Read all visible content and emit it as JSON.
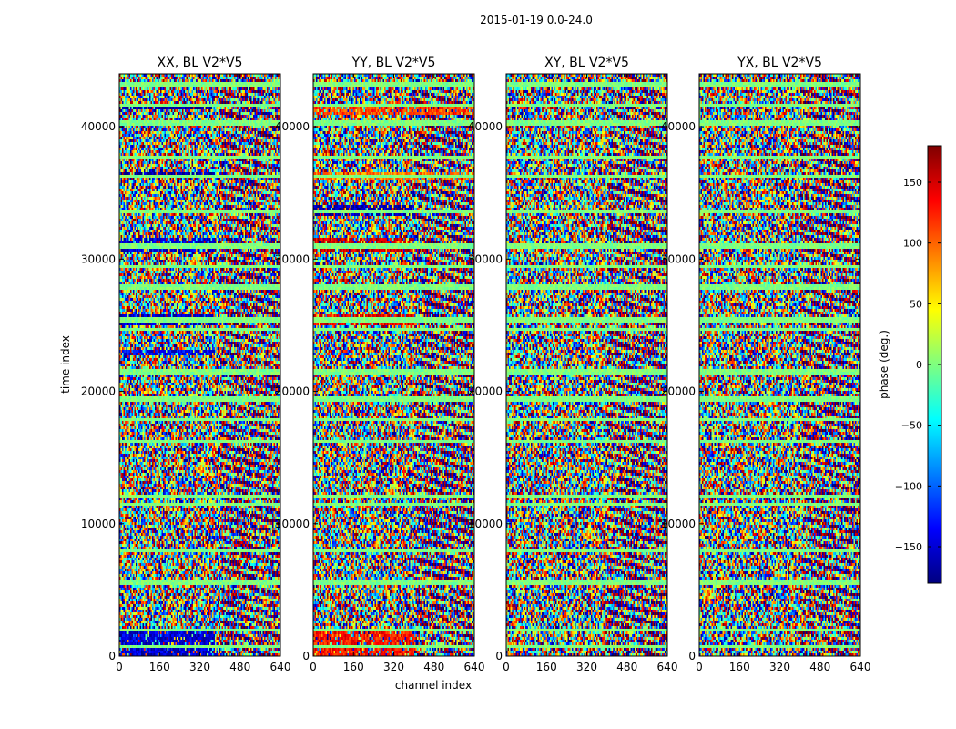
{
  "figure": {
    "suptitle": "2015-01-19 0.0-24.0"
  },
  "colors": {
    "colormap": [
      "#00007f",
      "#0000ff",
      "#007fff",
      "#00ffff",
      "#7fff7f",
      "#ffff00",
      "#ff7f00",
      "#ff0000",
      "#7f0000"
    ]
  },
  "chart_data": {
    "type": "heatmap",
    "shared": {
      "xlabel": "channel index",
      "ylabel": "time index",
      "xlim": [
        0,
        640
      ],
      "ylim": [
        0,
        44000
      ],
      "xticks": [
        0,
        160,
        320,
        480,
        640
      ],
      "yticks": [
        0,
        10000,
        20000,
        30000,
        40000
      ],
      "grid": false
    },
    "panels": [
      {
        "title": "XX, BL V2*V5",
        "polarization": "XX",
        "baseline": "V2*V5"
      },
      {
        "title": "YY, BL V2*V5",
        "polarization": "YY",
        "baseline": "V2*V5"
      },
      {
        "title": "XY, BL V2*V5",
        "polarization": "XY",
        "baseline": "V2*V5"
      },
      {
        "title": "YX, BL V2*V5",
        "polarization": "YX",
        "baseline": "V2*V5"
      }
    ],
    "colorbar": {
      "label": "phase (deg.)",
      "vmin": -180,
      "vmax": 180,
      "ticks": [
        -150,
        -100,
        -50,
        0,
        50,
        100,
        150
      ],
      "tick_labels": [
        "−150",
        "−100",
        "−50",
        "0",
        "50",
        "100",
        "150"
      ]
    },
    "flagged_time_rows": [
      700,
      1900,
      5600,
      8000,
      11500,
      12100,
      16200,
      17900,
      19400,
      21500,
      24700,
      25400,
      27900,
      29500,
      31000,
      33600,
      36200,
      37700,
      40300,
      41600,
      43200
    ],
    "coherent_phase_bands": {
      "XX": [
        {
          "t0": 0,
          "t1": 1800,
          "x1": 380,
          "phase": -150
        },
        {
          "t0": 25000,
          "t1": 25800,
          "x1": 380,
          "phase": -160
        },
        {
          "t0": 30600,
          "t1": 31600,
          "x1": 380,
          "phase": -150
        },
        {
          "t0": 36100,
          "t1": 36500,
          "x1": 380,
          "phase": -170
        },
        {
          "t0": 22700,
          "t1": 23200,
          "x1": 380,
          "phase": -140
        },
        {
          "t0": 41300,
          "t1": 41600,
          "x1": 380,
          "phase": -175
        }
      ],
      "YY": [
        {
          "t0": 0,
          "t1": 1800,
          "x1": 400,
          "phase": 130
        },
        {
          "t0": 24900,
          "t1": 25800,
          "x1": 400,
          "phase": 140
        },
        {
          "t0": 30600,
          "t1": 31600,
          "x1": 400,
          "phase": 150
        },
        {
          "t0": 41000,
          "t1": 41800,
          "x1": 640,
          "phase": 110
        },
        {
          "t0": 36000,
          "t1": 36600,
          "x1": 640,
          "phase": 90
        },
        {
          "t0": 33300,
          "t1": 34000,
          "x1": 400,
          "phase": -160
        }
      ],
      "XY": [],
      "YX": []
    }
  }
}
